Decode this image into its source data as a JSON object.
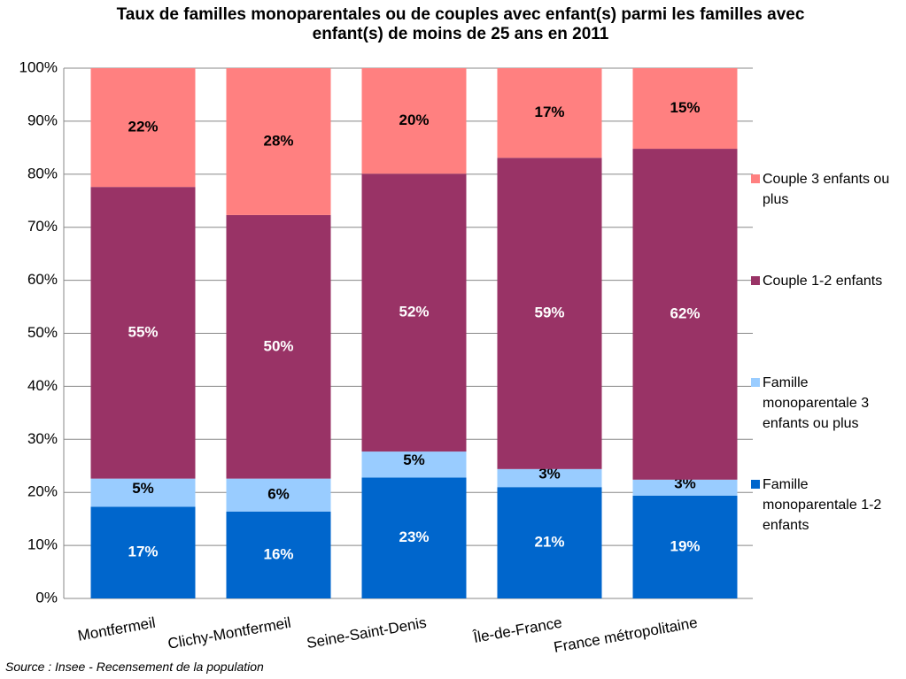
{
  "chart_data": {
    "type": "stacked_bar",
    "title": "Taux de familles monoparentales ou de couples avec enfant(s) parmi les familles avec enfant(s) de moins de 25 ans en 2011",
    "source": "Source : Insee - Recensement de la population",
    "categories": [
      "Montfermeil",
      "Clichy-Montfermeil",
      "Seine-Saint-Denis",
      "Île-de-France",
      "France métropolitaine"
    ],
    "series": [
      {
        "name": "Famille monoparentale 1-2 enfants",
        "color": "#0066cc",
        "values": [
          17.3,
          16.4,
          22.8,
          21.0,
          19.4
        ],
        "value_labels": [
          "17%",
          "16%",
          "23%",
          "21%",
          "19%"
        ]
      },
      {
        "name": "Famille monoparentale 3 enfants ou plus",
        "color": "#99ccff",
        "values": [
          5.3,
          6.2,
          4.9,
          3.4,
          3.0
        ],
        "value_labels": [
          "5%",
          "6%",
          "5%",
          "3%",
          "3%"
        ]
      },
      {
        "name": "Couple 1-2 enfants",
        "color": "#993366",
        "values": [
          55.0,
          49.7,
          52.4,
          58.7,
          62.4
        ],
        "value_labels": [
          "55%",
          "50%",
          "52%",
          "59%",
          "62%"
        ]
      },
      {
        "name": "Couple 3 enfants ou plus",
        "color": "#ff8080",
        "values": [
          22.4,
          27.7,
          19.9,
          16.9,
          15.2
        ],
        "value_labels": [
          "22%",
          "28%",
          "20%",
          "17%",
          "15%"
        ]
      }
    ],
    "ylim": [
      0,
      100
    ],
    "yticks": [
      {
        "value": 0,
        "label": "0%"
      },
      {
        "value": 10,
        "label": "10%"
      },
      {
        "value": 20,
        "label": "20%"
      },
      {
        "value": 30,
        "label": "30%"
      },
      {
        "value": 40,
        "label": "40%"
      },
      {
        "value": 50,
        "label": "50%"
      },
      {
        "value": 60,
        "label": "60%"
      },
      {
        "value": 70,
        "label": "70%"
      },
      {
        "value": 80,
        "label": "80%"
      },
      {
        "value": 90,
        "label": "90%"
      },
      {
        "value": 100,
        "label": "100%"
      }
    ],
    "grid": true
  }
}
